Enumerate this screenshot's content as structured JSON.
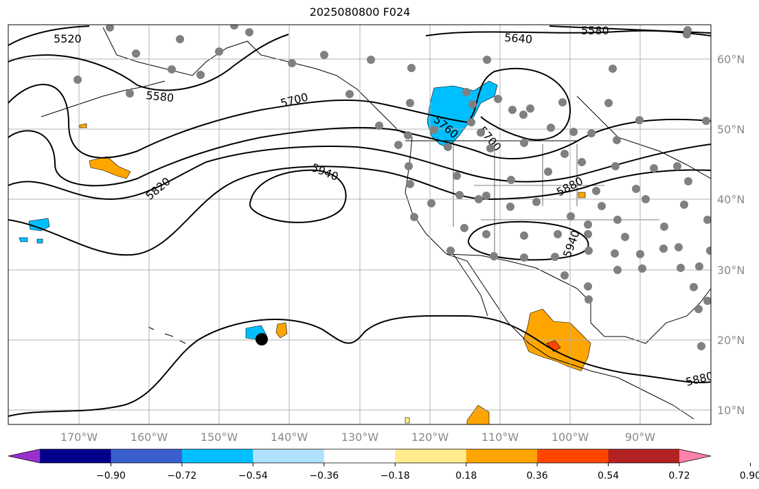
{
  "title": "2025080800 F024",
  "latitude_labels": [
    "60°N",
    "50°N",
    "40°N",
    "30°N",
    "20°N",
    "10°N"
  ],
  "longitude_labels": [
    "170°W",
    "160°W",
    "150°W",
    "140°W",
    "130°W",
    "120°W",
    "110°W",
    "100°W",
    "90°W"
  ],
  "contour_labels": [
    "5520",
    "5580",
    "5640",
    "5580",
    "5700",
    "5760",
    "5700",
    "5820",
    "5940",
    "5880",
    "5940",
    "5880"
  ],
  "colorbar": {
    "tick_labels": [
      "−0.90",
      "−0.72",
      "−0.54",
      "−0.36",
      "−0.18",
      "0.18",
      "0.36",
      "0.54",
      "0.72",
      "0.90"
    ],
    "colors": [
      "#9b30d0",
      "#00008b",
      "#3a5fcd",
      "#00bfff",
      "#b0e2ff",
      "#ffffff",
      "#ffec8b",
      "#ffa500",
      "#ff4500",
      "#b22222",
      "#ff82ab"
    ]
  },
  "colors": {
    "contour": "#000000",
    "grid": "#b0b0b0",
    "station": "#808080",
    "negative_area": "#00bfff",
    "positive_area": "#ffa500",
    "strong_positive": "#ff4500"
  },
  "marker": "center-dot"
}
